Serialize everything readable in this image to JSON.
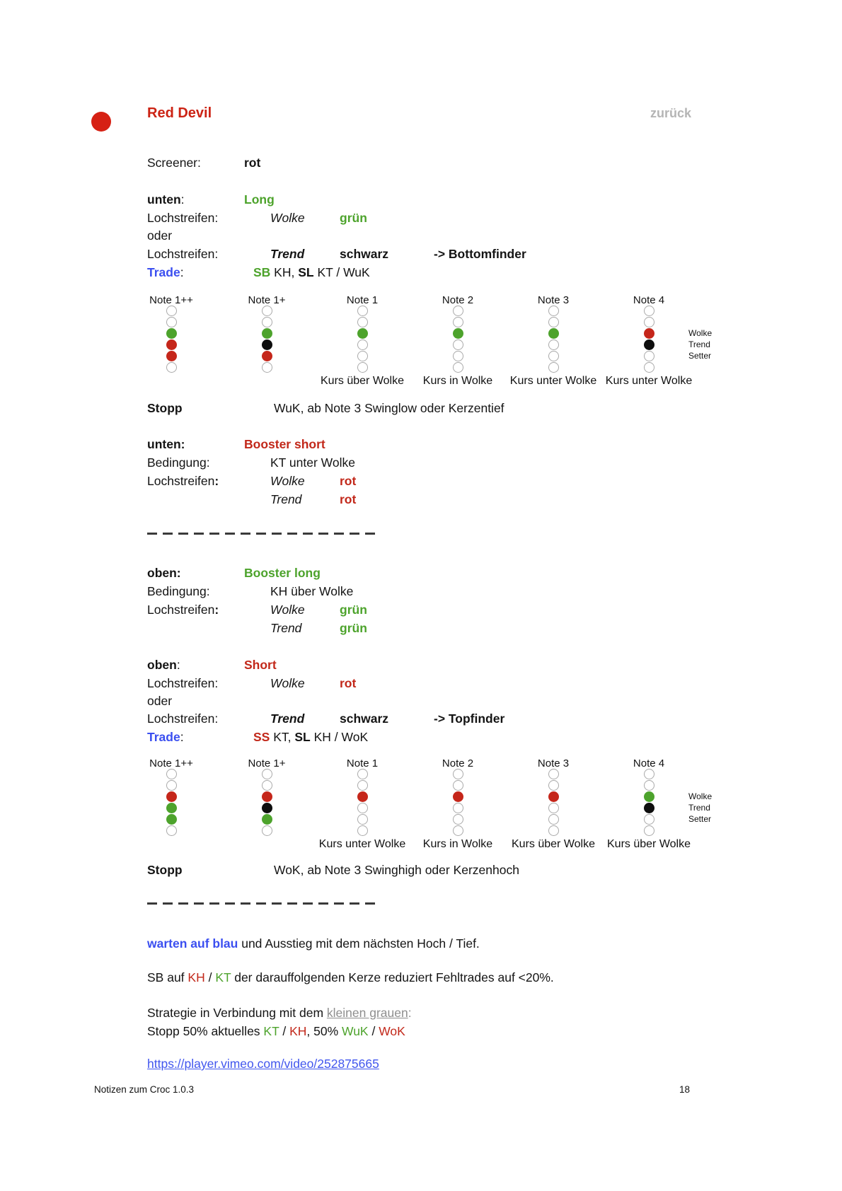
{
  "header": {
    "title": "Red Devil",
    "back_link": "zurück"
  },
  "colors": {
    "title_red": "#cc2314",
    "accent_red": "#c2281a",
    "accent_green": "#4da32c",
    "accent_blue": "#3b4ff0",
    "link_blue": "#4156ee",
    "gray": "#8e8e8e",
    "bullet_red": "#d62114",
    "dot_black": "#0e0e0e",
    "empty_circle_stroke": "#a9a9a9"
  },
  "lines": [
    {
      "id": "screener",
      "cells": [
        {
          "tab": "label",
          "seg": [
            {
              "t": "Screener:"
            }
          ]
        },
        {
          "tab": "value",
          "seg": [
            {
              "t": "rot",
              "s": "b"
            }
          ]
        }
      ]
    },
    {
      "id": "unten_long",
      "cells": [
        {
          "tab": "label",
          "seg": [
            {
              "t": "unten",
              "s": "b"
            },
            {
              "t": ":"
            }
          ]
        },
        {
          "tab": "value",
          "seg": [
            {
              "t": "Long",
              "s": "b green"
            }
          ]
        }
      ]
    },
    {
      "id": "loch_wolke_gruen",
      "cells": [
        {
          "tab": "label",
          "seg": [
            {
              "t": "Lochstreifen:"
            }
          ]
        },
        {
          "tab": "sub",
          "seg": [
            {
              "t": "Wolke",
              "s": "i"
            }
          ]
        },
        {
          "tab": "color",
          "seg": [
            {
              "t": "grün",
              "s": "b green"
            }
          ]
        }
      ]
    },
    {
      "id": "oder1",
      "cells": [
        {
          "tab": "label",
          "seg": [
            {
              "t": "oder"
            }
          ]
        }
      ]
    },
    {
      "id": "loch_trend_schwarz",
      "cells": [
        {
          "tab": "label",
          "seg": [
            {
              "t": "Lochstreifen:"
            }
          ]
        },
        {
          "tab": "sub",
          "seg": [
            {
              "t": "Trend",
              "s": "bi"
            }
          ]
        },
        {
          "tab": "color",
          "seg": [
            {
              "t": "schwarz",
              "s": "b"
            }
          ]
        },
        {
          "tab": "arrow",
          "seg": [
            {
              "t": "-> Bottomfinder",
              "s": "b"
            }
          ]
        }
      ]
    },
    {
      "id": "trade_long",
      "cells": [
        {
          "tab": "label",
          "seg": [
            {
              "t": "Trade",
              "s": "b blue"
            },
            {
              "t": ":"
            }
          ]
        },
        {
          "tab": "trade",
          "seg": [
            {
              "t": "SB",
              "s": "b green"
            },
            {
              "t": " KH, "
            },
            {
              "t": "SL",
              "s": "b"
            },
            {
              "t": " KT / WuK"
            }
          ]
        }
      ]
    },
    {
      "id": "stopp1",
      "cells": [
        {
          "tab": "label",
          "seg": [
            {
              "t": "Stopp",
              "s": "b"
            }
          ]
        },
        {
          "tab": "stopp",
          "seg": [
            {
              "t": "WuK, ab Note 3 Swinglow oder Kerzentief"
            }
          ]
        }
      ]
    },
    {
      "id": "unten_booster",
      "cells": [
        {
          "tab": "label",
          "seg": [
            {
              "t": "unten:",
              "s": "b"
            }
          ]
        },
        {
          "tab": "value",
          "seg": [
            {
              "t": "Booster short",
              "s": "b red"
            }
          ]
        }
      ]
    },
    {
      "id": "bedingung_kt",
      "cells": [
        {
          "tab": "label",
          "seg": [
            {
              "t": "Bedingung:"
            }
          ]
        },
        {
          "tab": "sub",
          "seg": [
            {
              "t": "KT unter Wolke"
            }
          ]
        }
      ]
    },
    {
      "id": "loch_wolke_rot",
      "cells": [
        {
          "tab": "label",
          "seg": [
            {
              "t": "Lochstreifen"
            },
            {
              "t": ":",
              "s": "b"
            }
          ]
        },
        {
          "tab": "sub",
          "seg": [
            {
              "t": "Wolke",
              "s": "i"
            }
          ]
        },
        {
          "tab": "color",
          "seg": [
            {
              "t": "rot",
              "s": "b red"
            }
          ]
        }
      ]
    },
    {
      "id": "trend_rot",
      "cells": [
        {
          "tab": "sub",
          "seg": [
            {
              "t": "Trend",
              "s": "i"
            }
          ]
        },
        {
          "tab": "color",
          "seg": [
            {
              "t": "rot",
              "s": "b red"
            }
          ]
        }
      ]
    },
    {
      "id": "oben_booster",
      "cells": [
        {
          "tab": "label",
          "seg": [
            {
              "t": "oben:",
              "s": "b"
            }
          ]
        },
        {
          "tab": "value",
          "seg": [
            {
              "t": "Booster long",
              "s": "b green"
            }
          ]
        }
      ]
    },
    {
      "id": "bedingung_kh",
      "cells": [
        {
          "tab": "label",
          "seg": [
            {
              "t": "Bedingung:"
            }
          ]
        },
        {
          "tab": "sub",
          "seg": [
            {
              "t": "KH über Wolke"
            }
          ]
        }
      ]
    },
    {
      "id": "loch_wolke_gruen2",
      "cells": [
        {
          "tab": "label",
          "seg": [
            {
              "t": "Lochstreifen"
            },
            {
              "t": ":",
              "s": "b"
            }
          ]
        },
        {
          "tab": "sub",
          "seg": [
            {
              "t": "Wolke",
              "s": "i"
            }
          ]
        },
        {
          "tab": "color",
          "seg": [
            {
              "t": "grün",
              "s": "b green"
            }
          ]
        }
      ]
    },
    {
      "id": "trend_gruen",
      "cells": [
        {
          "tab": "sub",
          "seg": [
            {
              "t": "Trend",
              "s": "i"
            }
          ]
        },
        {
          "tab": "color",
          "seg": [
            {
              "t": "grün",
              "s": "b green"
            }
          ]
        }
      ]
    },
    {
      "id": "oben_short",
      "cells": [
        {
          "tab": "label",
          "seg": [
            {
              "t": "oben",
              "s": "b"
            },
            {
              "t": ":"
            }
          ]
        },
        {
          "tab": "value",
          "seg": [
            {
              "t": "Short",
              "s": "b red"
            }
          ]
        }
      ]
    },
    {
      "id": "loch_wolke_rot2",
      "cells": [
        {
          "tab": "label",
          "seg": [
            {
              "t": "Lochstreifen:"
            }
          ]
        },
        {
          "tab": "sub",
          "seg": [
            {
              "t": "Wolke",
              "s": "i"
            }
          ]
        },
        {
          "tab": "color",
          "seg": [
            {
              "t": "rot",
              "s": "b red"
            }
          ]
        }
      ]
    },
    {
      "id": "oder2",
      "cells": [
        {
          "tab": "label",
          "seg": [
            {
              "t": "oder"
            }
          ]
        }
      ]
    },
    {
      "id": "loch_trend_schwarz2",
      "cells": [
        {
          "tab": "label",
          "seg": [
            {
              "t": "Lochstreifen:"
            }
          ]
        },
        {
          "tab": "sub",
          "seg": [
            {
              "t": "Trend",
              "s": "bi"
            }
          ]
        },
        {
          "tab": "color",
          "seg": [
            {
              "t": "schwarz",
              "s": "b"
            }
          ]
        },
        {
          "tab": "arrow",
          "seg": [
            {
              "t": "-> Topfinder",
              "s": "b"
            }
          ]
        }
      ]
    },
    {
      "id": "trade_short",
      "cells": [
        {
          "tab": "label",
          "seg": [
            {
              "t": "Trade",
              "s": "b blue"
            },
            {
              "t": ":"
            }
          ]
        },
        {
          "tab": "trade",
          "seg": [
            {
              "t": "SS",
              "s": "b red"
            },
            {
              "t": " KT, "
            },
            {
              "t": "SL",
              "s": "b"
            },
            {
              "t": " KH / WoK"
            }
          ]
        }
      ]
    },
    {
      "id": "stopp2",
      "cells": [
        {
          "tab": "label",
          "seg": [
            {
              "t": "Stopp",
              "s": "b"
            }
          ]
        },
        {
          "tab": "stopp",
          "seg": [
            {
              "t": "WoK, ab Note 3 Swinghigh oder Kerzenhoch"
            }
          ]
        }
      ]
    },
    {
      "id": "warten",
      "cells": [
        {
          "tab": "label",
          "seg": [
            {
              "t": "warten auf blau",
              "s": "b blue"
            },
            {
              "t": " und Ausstieg mit dem nächsten Hoch / Tief."
            }
          ]
        }
      ]
    },
    {
      "id": "sb_auf",
      "cells": [
        {
          "tab": "label",
          "seg": [
            {
              "t": "SB auf "
            },
            {
              "t": "KH",
              "s": "red"
            },
            {
              "t": " / "
            },
            {
              "t": "KT",
              "s": "green"
            },
            {
              "t": " der darauffolgenden Kerze reduziert Fehltrades auf <20%."
            }
          ]
        }
      ]
    },
    {
      "id": "strategie",
      "cells": [
        {
          "tab": "label",
          "seg": [
            {
              "t": "Strategie in Verbindung mit dem "
            },
            {
              "t": "kleinen grauen",
              "s": "gray u",
              "n": "kleinen-grauen-link",
              "ia": true
            },
            {
              "t": ":",
              "s": "gray"
            }
          ]
        }
      ]
    },
    {
      "id": "stopp50",
      "cells": [
        {
          "tab": "label",
          "seg": [
            {
              "t": "Stopp 50% aktuelles "
            },
            {
              "t": "KT",
              "s": "green"
            },
            {
              "t": " / "
            },
            {
              "t": "KH",
              "s": "red"
            },
            {
              "t": ", 50% "
            },
            {
              "t": "WuK",
              "s": "green"
            },
            {
              "t": " / "
            },
            {
              "t": "WoK",
              "s": "red"
            }
          ]
        }
      ]
    },
    {
      "id": "link",
      "cells": [
        {
          "tab": "label",
          "seg": [
            {
              "t": "https://player.vimeo.com/video/252875665",
              "s": "link",
              "n": "vimeo-link",
              "ia": true
            }
          ]
        }
      ]
    }
  ],
  "diagrams": [
    {
      "name": "long-note-diagram",
      "row_labels": [
        "Wolke",
        "Trend",
        "Setter"
      ],
      "columns": [
        {
          "label": "Note 1++",
          "dots": [
            "e",
            "e",
            "green",
            "red",
            "red",
            "e"
          ],
          "kurs": ""
        },
        {
          "label": "Note 1+",
          "dots": [
            "e",
            "e",
            "green",
            "black",
            "red",
            "e"
          ],
          "kurs": ""
        },
        {
          "label": "Note 1",
          "dots": [
            "e",
            "e",
            "green",
            "e",
            "e",
            "e"
          ],
          "kurs": "Kurs über Wolke"
        },
        {
          "label": "Note 2",
          "dots": [
            "e",
            "e",
            "green",
            "e",
            "e",
            "e"
          ],
          "kurs": "Kurs in Wolke"
        },
        {
          "label": "Note 3",
          "dots": [
            "e",
            "e",
            "green",
            "e",
            "e",
            "e"
          ],
          "kurs": "Kurs unter Wolke"
        },
        {
          "label": "Note 4",
          "dots": [
            "e",
            "e",
            "red",
            "black",
            "e",
            "e"
          ],
          "kurs": "Kurs unter Wolke"
        }
      ]
    },
    {
      "name": "short-note-diagram",
      "row_labels": [
        "Wolke",
        "Trend",
        "Setter"
      ],
      "columns": [
        {
          "label": "Note 1++",
          "dots": [
            "e",
            "e",
            "red",
            "green",
            "green",
            "e"
          ],
          "kurs": ""
        },
        {
          "label": "Note 1+",
          "dots": [
            "e",
            "e",
            "red",
            "black",
            "green",
            "e"
          ],
          "kurs": ""
        },
        {
          "label": "Note 1",
          "dots": [
            "e",
            "e",
            "red",
            "e",
            "e",
            "e"
          ],
          "kurs": "Kurs unter Wolke"
        },
        {
          "label": "Note 2",
          "dots": [
            "e",
            "e",
            "red",
            "e",
            "e",
            "e"
          ],
          "kurs": "Kurs in Wolke"
        },
        {
          "label": "Note 3",
          "dots": [
            "e",
            "e",
            "red",
            "e",
            "e",
            "e"
          ],
          "kurs": "Kurs über Wolke"
        },
        {
          "label": "Note 4",
          "dots": [
            "e",
            "e",
            "green",
            "black",
            "e",
            "e"
          ],
          "kurs": "Kurs über Wolke"
        }
      ]
    }
  ],
  "footer": {
    "left": "Notizen zum Croc 1.0.3",
    "page_number": "18"
  }
}
